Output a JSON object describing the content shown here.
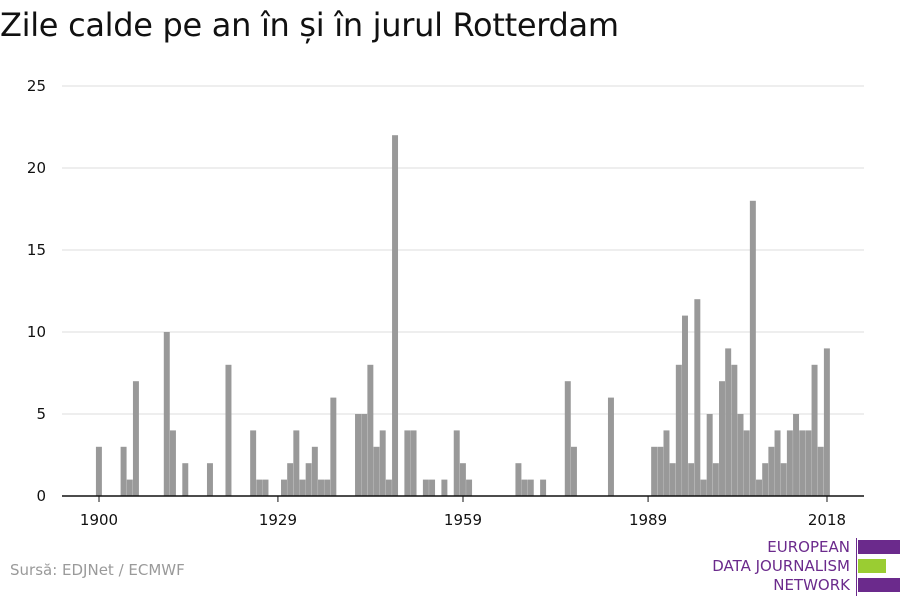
{
  "title": "Zile calde pe an în și în jurul Rotterdam",
  "source": "Sursă: EDJNet / ECMWF",
  "logo": {
    "lines": [
      "EUROPEAN",
      "DATA JOURNALISM",
      "NETWORK"
    ],
    "colors": [
      "#6b2a8c",
      "#9acd32",
      "#6b2a8c"
    ]
  },
  "colors": {
    "bar": "#999999",
    "grid": "#dddddd",
    "axis": "#111111",
    "text": "#111111"
  },
  "chart_data": {
    "type": "bar",
    "title": "Zile calde pe an în și în jurul Rotterdam",
    "xlabel": "",
    "ylabel": "",
    "ylim": [
      0,
      25
    ],
    "yticks": [
      0,
      5,
      10,
      15,
      20,
      25
    ],
    "xticks": [
      1900,
      1929,
      1959,
      1989,
      2018
    ],
    "xlim": [
      1894,
      2024
    ],
    "grid": true,
    "x": [
      1900,
      1904,
      1905,
      1906,
      1911,
      1912,
      1914,
      1918,
      1921,
      1925,
      1926,
      1927,
      1930,
      1931,
      1932,
      1933,
      1934,
      1935,
      1936,
      1937,
      1938,
      1942,
      1943,
      1944,
      1945,
      1946,
      1947,
      1948,
      1950,
      1951,
      1953,
      1954,
      1956,
      1958,
      1959,
      1960,
      1968,
      1969,
      1970,
      1972,
      1976,
      1977,
      1983,
      1990,
      1991,
      1992,
      1993,
      1994,
      1995,
      1996,
      1997,
      1998,
      1999,
      2000,
      2001,
      2002,
      2003,
      2004,
      2005,
      2006,
      2007,
      2008,
      2009,
      2010,
      2011,
      2012,
      2013,
      2014,
      2015,
      2016,
      2017,
      2018
    ],
    "values": [
      3,
      3,
      1,
      7,
      10,
      4,
      2,
      2,
      8,
      4,
      1,
      1,
      1,
      2,
      4,
      1,
      2,
      3,
      1,
      1,
      6,
      5,
      5,
      8,
      3,
      4,
      1,
      22,
      4,
      4,
      1,
      1,
      1,
      4,
      2,
      1,
      2,
      1,
      1,
      1,
      7,
      3,
      6,
      3,
      3,
      4,
      2,
      8,
      11,
      2,
      12,
      1,
      5,
      2,
      7,
      9,
      8,
      5,
      4,
      18,
      1,
      2,
      3,
      4,
      2,
      4,
      5,
      4,
      4,
      8,
      3,
      9
    ]
  }
}
